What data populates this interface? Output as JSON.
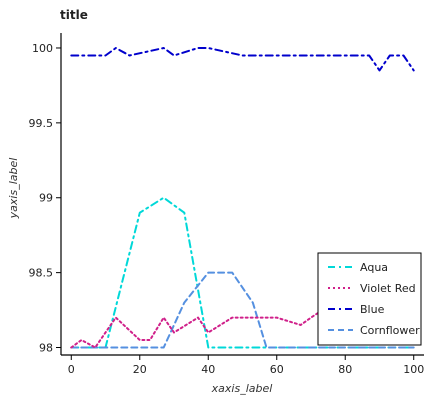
{
  "chart_data": {
    "type": "line",
    "title": "title",
    "xlabel": "xaxis_label",
    "ylabel": "yaxis_label",
    "xlim": [
      -3,
      103
    ],
    "ylim": [
      97.95,
      100.1
    ],
    "x_ticks": [
      0,
      20,
      40,
      60,
      80,
      100
    ],
    "y_ticks": [
      98,
      98.5,
      99,
      99.5,
      100
    ],
    "grid": false,
    "legend_position": "right",
    "series": [
      {
        "name": "Blue",
        "color": "#0000cc",
        "dash": "dashdot",
        "x": [
          0,
          10,
          13,
          17,
          27,
          30,
          37,
          40,
          50,
          53,
          57,
          60,
          73,
          77,
          80,
          87,
          90,
          93,
          97,
          100
        ],
        "y": [
          99.95,
          99.95,
          100.0,
          99.95,
          100.0,
          99.95,
          100.0,
          100.0,
          99.95,
          99.95,
          99.95,
          99.95,
          99.95,
          99.95,
          99.95,
          99.95,
          99.85,
          99.95,
          99.95,
          99.85
        ]
      },
      {
        "name": "Aqua",
        "color": "#00d8d8",
        "dash": "dashdot",
        "x": [
          0,
          7,
          10,
          20,
          27,
          33,
          40,
          45,
          50,
          60,
          70,
          80,
          90,
          100
        ],
        "y": [
          98.0,
          98.0,
          98.0,
          98.9,
          99.0,
          98.9,
          98.0,
          98.0,
          98.0,
          98.0,
          98.0,
          98.0,
          98.0,
          98.0
        ]
      },
      {
        "name": "Cornflower",
        "color": "#5590e0",
        "dash": "dashed",
        "x": [
          0,
          10,
          20,
          27,
          33,
          40,
          47,
          53,
          57,
          60,
          70,
          80,
          90,
          100
        ],
        "y": [
          98.0,
          98.0,
          98.0,
          98.0,
          98.3,
          98.5,
          98.5,
          98.3,
          98.0,
          98.0,
          98.0,
          98.0,
          98.0,
          98.0
        ]
      },
      {
        "name": "Violet Red",
        "color": "#d0208a",
        "dash": "dotted",
        "x": [
          0,
          3,
          7,
          13,
          20,
          23,
          27,
          30,
          37,
          40,
          47,
          53,
          57,
          60,
          67,
          70,
          80,
          83,
          87,
          90,
          97,
          100
        ],
        "y": [
          98.0,
          98.05,
          98.0,
          98.2,
          98.05,
          98.05,
          98.2,
          98.1,
          98.2,
          98.1,
          98.2,
          98.2,
          98.2,
          98.2,
          98.15,
          98.2,
          98.35,
          98.2,
          98.35,
          98.35,
          98.15,
          98.35
        ]
      }
    ],
    "legend": [
      "Aqua",
      "Violet Red",
      "Blue",
      "Cornflower"
    ]
  }
}
